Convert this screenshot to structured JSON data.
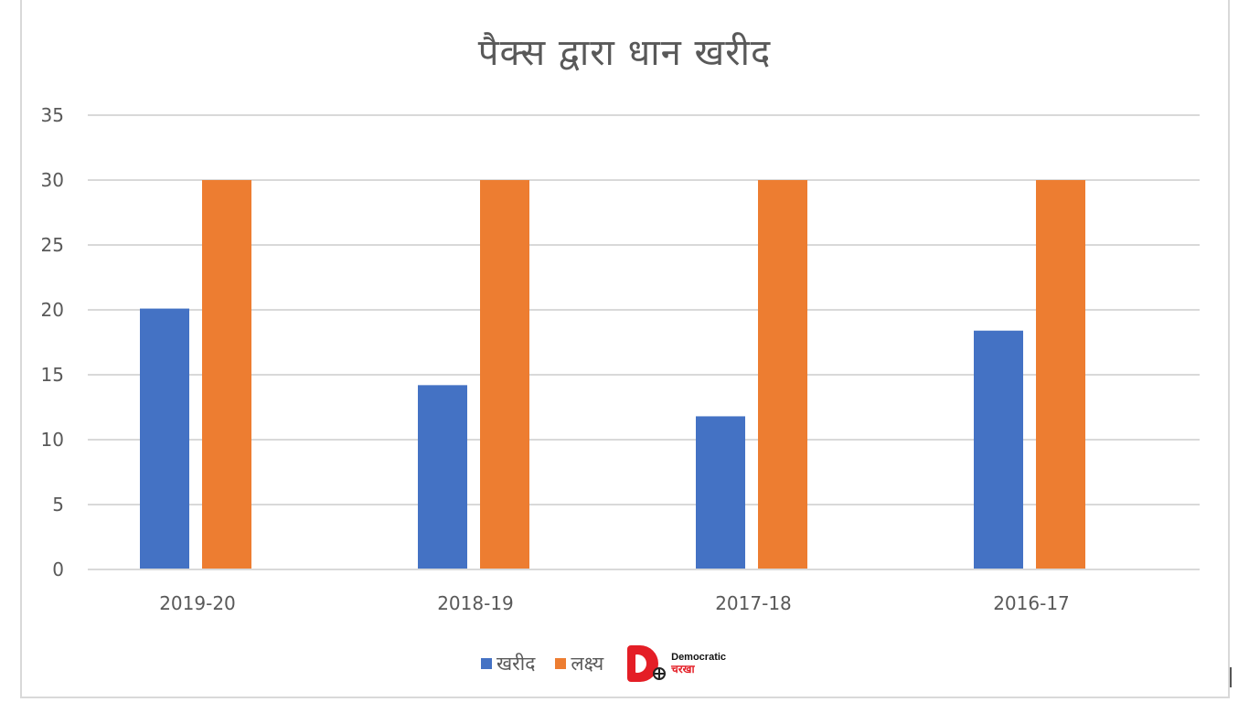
{
  "chart_data": {
    "type": "bar",
    "title": "पैक्स द्वारा धान खरीद",
    "categories": [
      "2019-20",
      "2018-19",
      "2017-18",
      "2016-17"
    ],
    "series": [
      {
        "name": "खरीद",
        "color": "#4472c4",
        "values": [
          20.1,
          14.2,
          11.8,
          18.4
        ]
      },
      {
        "name": "लक्ष्य",
        "color": "#ed7d31",
        "values": [
          30,
          30,
          30,
          30
        ]
      }
    ],
    "xlabel": "",
    "ylabel": "",
    "ylim": [
      0,
      35
    ],
    "yticks": [
      0,
      5,
      10,
      15,
      20,
      25,
      30,
      35
    ],
    "grid": true,
    "legend_position": "bottom"
  },
  "logo": {
    "text_top": "Democratic",
    "text_bottom": "चरखा",
    "color": "#e41e26"
  }
}
